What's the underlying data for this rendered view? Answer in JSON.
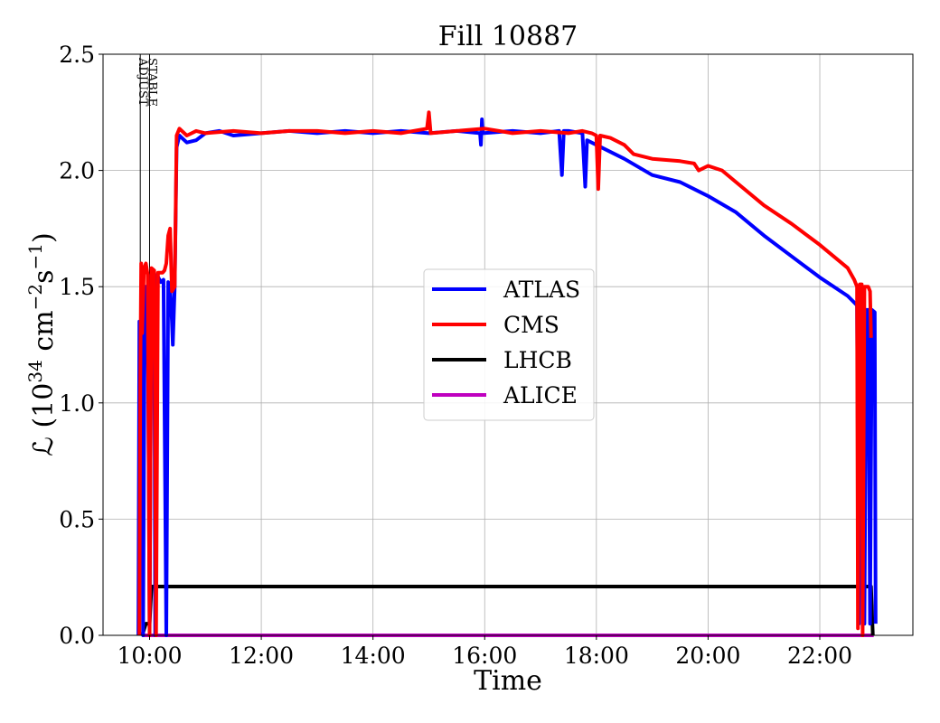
{
  "chart_data": {
    "type": "line",
    "title": "Fill 10887",
    "xlabel": "Time",
    "ylabel_prefix": "ℒ (10",
    "ylabel_exp1": "34",
    "ylabel_mid": " cm",
    "ylabel_exp2": "−2",
    "ylabel_s": "s",
    "ylabel_exp3": "−1",
    "ylabel_suffix": ")",
    "xlim": [
      "09:10",
      "23:40"
    ],
    "ylim": [
      0,
      2.5
    ],
    "grid": true,
    "legend_position": "center-right",
    "x_ticks": [
      "10:00",
      "12:00",
      "14:00",
      "16:00",
      "18:00",
      "20:00",
      "22:00"
    ],
    "y_ticks": [
      "0.0",
      "0.5",
      "1.0",
      "1.5",
      "2.0",
      "2.5"
    ],
    "markers": [
      {
        "label": "ADJUST",
        "time": "09:50"
      },
      {
        "label": "STABLE",
        "time": "10:00"
      }
    ],
    "series": [
      {
        "name": "ATLAS",
        "color": "#0000ff",
        "points": [
          [
            "09:48",
            0.0
          ],
          [
            "09:49",
            1.35
          ],
          [
            "09:50",
            0.45
          ],
          [
            "09:51",
            1.5
          ],
          [
            "09:52",
            1.55
          ],
          [
            "09:53",
            0.0
          ],
          [
            "09:55",
            1.5
          ],
          [
            "09:58",
            1.5
          ],
          [
            "10:00",
            0.02
          ],
          [
            "10:02",
            1.55
          ],
          [
            "10:05",
            1.55
          ],
          [
            "10:06",
            0.0
          ],
          [
            "10:08",
            1.55
          ],
          [
            "10:12",
            1.52
          ],
          [
            "10:15",
            1.53
          ],
          [
            "10:18",
            0.0
          ],
          [
            "10:20",
            1.52
          ],
          [
            "10:22",
            1.5
          ],
          [
            "10:24",
            1.35
          ],
          [
            "10:25",
            1.25
          ],
          [
            "10:27",
            1.5
          ],
          [
            "10:29",
            2.1
          ],
          [
            "10:32",
            2.15
          ],
          [
            "10:40",
            2.12
          ],
          [
            "10:50",
            2.13
          ],
          [
            "11:00",
            2.16
          ],
          [
            "11:15",
            2.17
          ],
          [
            "11:30",
            2.15
          ],
          [
            "12:00",
            2.16
          ],
          [
            "12:30",
            2.17
          ],
          [
            "13:00",
            2.16
          ],
          [
            "13:30",
            2.17
          ],
          [
            "14:00",
            2.16
          ],
          [
            "14:30",
            2.17
          ],
          [
            "15:00",
            2.16
          ],
          [
            "15:30",
            2.17
          ],
          [
            "15:55",
            2.16
          ],
          [
            "15:56",
            2.11
          ],
          [
            "15:57",
            2.22
          ],
          [
            "15:58",
            2.16
          ],
          [
            "16:30",
            2.17
          ],
          [
            "17:00",
            2.16
          ],
          [
            "17:20",
            2.17
          ],
          [
            "17:23",
            1.98
          ],
          [
            "17:25",
            2.17
          ],
          [
            "17:30",
            2.17
          ],
          [
            "17:45",
            2.16
          ],
          [
            "17:48",
            1.93
          ],
          [
            "17:50",
            2.13
          ],
          [
            "18:00",
            2.11
          ],
          [
            "18:30",
            2.05
          ],
          [
            "19:00",
            1.98
          ],
          [
            "19:30",
            1.95
          ],
          [
            "20:00",
            1.89
          ],
          [
            "20:30",
            1.82
          ],
          [
            "21:00",
            1.72
          ],
          [
            "21:30",
            1.63
          ],
          [
            "22:00",
            1.54
          ],
          [
            "22:30",
            1.46
          ],
          [
            "22:40",
            1.42
          ],
          [
            "22:42",
            0.05
          ],
          [
            "22:44",
            1.42
          ],
          [
            "22:46",
            1.41
          ],
          [
            "22:48",
            0.05
          ],
          [
            "22:50",
            1.4
          ],
          [
            "22:52",
            1.4
          ],
          [
            "22:54",
            0.05
          ],
          [
            "22:56",
            1.4
          ],
          [
            "22:59",
            1.39
          ],
          [
            "23:00",
            0.05
          ]
        ]
      },
      {
        "name": "CMS",
        "color": "#ff0000",
        "points": [
          [
            "09:49",
            0.0
          ],
          [
            "09:50",
            1.1
          ],
          [
            "09:51",
            1.6
          ],
          [
            "09:52",
            1.3
          ],
          [
            "09:54",
            1.58
          ],
          [
            "09:56",
            1.6
          ],
          [
            "09:58",
            1.55
          ],
          [
            "10:00",
            0.0
          ],
          [
            "10:02",
            1.58
          ],
          [
            "10:05",
            1.57
          ],
          [
            "10:07",
            0.0
          ],
          [
            "10:09",
            1.56
          ],
          [
            "10:14",
            1.56
          ],
          [
            "10:16",
            1.57
          ],
          [
            "10:18",
            1.6
          ],
          [
            "10:20",
            1.72
          ],
          [
            "10:22",
            1.75
          ],
          [
            "10:24",
            1.48
          ],
          [
            "10:27",
            1.5
          ],
          [
            "10:29",
            2.15
          ],
          [
            "10:32",
            2.18
          ],
          [
            "10:40",
            2.15
          ],
          [
            "10:50",
            2.17
          ],
          [
            "11:00",
            2.16
          ],
          [
            "11:30",
            2.17
          ],
          [
            "12:00",
            2.16
          ],
          [
            "12:30",
            2.17
          ],
          [
            "13:00",
            2.17
          ],
          [
            "13:30",
            2.16
          ],
          [
            "14:00",
            2.17
          ],
          [
            "14:30",
            2.16
          ],
          [
            "14:58",
            2.18
          ],
          [
            "15:00",
            2.25
          ],
          [
            "15:02",
            2.16
          ],
          [
            "15:30",
            2.17
          ],
          [
            "16:00",
            2.18
          ],
          [
            "16:30",
            2.16
          ],
          [
            "17:00",
            2.17
          ],
          [
            "17:30",
            2.16
          ],
          [
            "17:45",
            2.17
          ],
          [
            "17:55",
            2.16
          ],
          [
            "18:00",
            2.15
          ],
          [
            "18:02",
            1.92
          ],
          [
            "18:04",
            2.15
          ],
          [
            "18:15",
            2.14
          ],
          [
            "18:30",
            2.11
          ],
          [
            "18:40",
            2.07
          ],
          [
            "19:00",
            2.05
          ],
          [
            "19:30",
            2.04
          ],
          [
            "19:45",
            2.03
          ],
          [
            "19:50",
            2.0
          ],
          [
            "20:00",
            2.02
          ],
          [
            "20:15",
            2.0
          ],
          [
            "20:30",
            1.95
          ],
          [
            "21:00",
            1.85
          ],
          [
            "21:30",
            1.77
          ],
          [
            "22:00",
            1.68
          ],
          [
            "22:30",
            1.58
          ],
          [
            "22:37",
            1.53
          ],
          [
            "22:40",
            1.5
          ],
          [
            "22:41",
            0.03
          ],
          [
            "22:43",
            1.51
          ],
          [
            "22:45",
            1.51
          ],
          [
            "22:46",
            0.0
          ],
          [
            "22:48",
            1.5
          ],
          [
            "22:52",
            1.5
          ],
          [
            "22:54",
            1.48
          ],
          [
            "22:55",
            1.28
          ]
        ]
      },
      {
        "name": "LHCB",
        "color": "#000000",
        "points": [
          [
            "09:52",
            0.0
          ],
          [
            "09:56",
            0.05
          ],
          [
            "10:00",
            0.05
          ],
          [
            "10:02",
            0.21
          ],
          [
            "11:00",
            0.21
          ],
          [
            "12:00",
            0.21
          ],
          [
            "13:00",
            0.21
          ],
          [
            "14:00",
            0.21
          ],
          [
            "15:00",
            0.21
          ],
          [
            "16:00",
            0.21
          ],
          [
            "17:00",
            0.21
          ],
          [
            "18:00",
            0.21
          ],
          [
            "19:00",
            0.21
          ],
          [
            "20:00",
            0.21
          ],
          [
            "21:00",
            0.21
          ],
          [
            "22:00",
            0.21
          ],
          [
            "22:55",
            0.21
          ],
          [
            "22:57",
            0.0
          ]
        ]
      },
      {
        "name": "ALICE",
        "color": "#bf00bf",
        "points": [
          [
            "09:52",
            0.0
          ],
          [
            "22:58",
            0.0
          ]
        ]
      }
    ]
  }
}
